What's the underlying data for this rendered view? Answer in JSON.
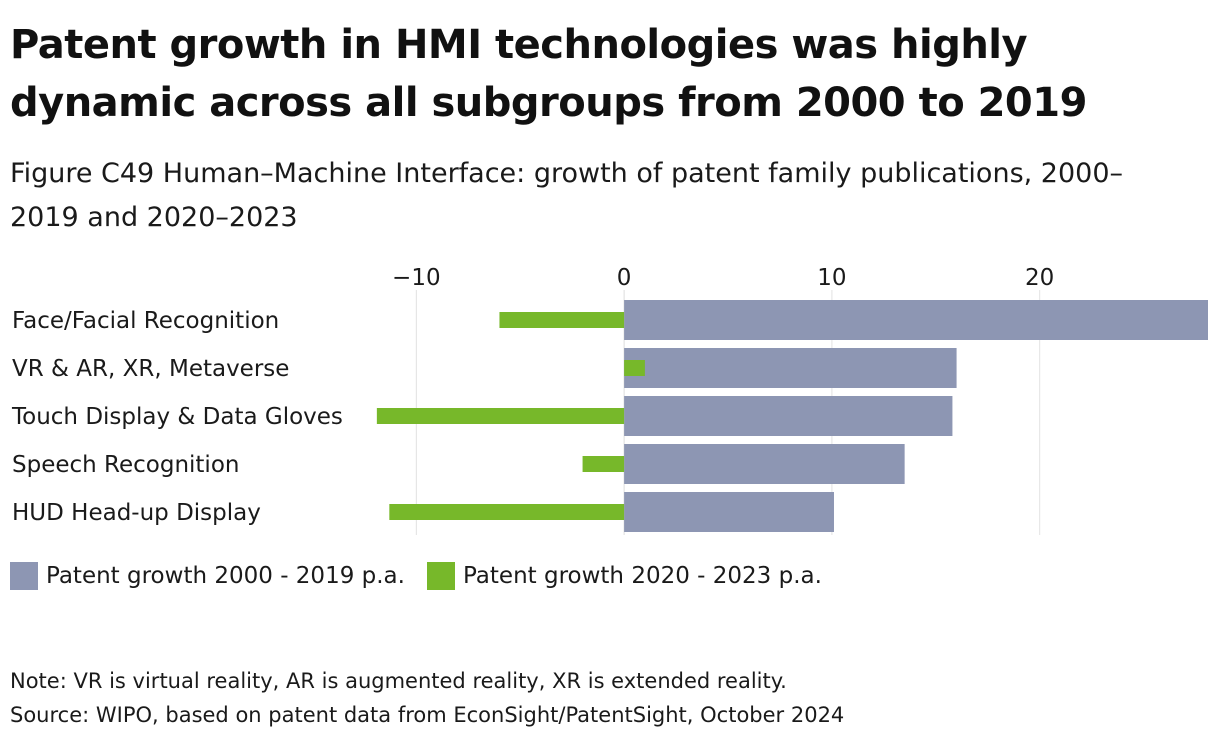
{
  "title": "Patent growth in HMI technologies was highly dynamic across all subgroups from 2000 to 2019",
  "subtitle": "Figure C49 Human–Machine Interface: growth of patent family publications, 2000–2019 and 2020–2023",
  "colors": {
    "series_2000_2019": "#8d96b3",
    "series_2020_2023": "#77b82a",
    "grid": "#e2e2e2"
  },
  "chart_data": {
    "type": "bar",
    "orientation": "horizontal",
    "categories": [
      "Face/Facial Recognition",
      "VR & AR, XR, Metaverse",
      "Touch Display & Data Gloves",
      "Speech Recognition",
      "HUD Head-up Display"
    ],
    "series": [
      {
        "name": "Patent growth 2000 - 2019 p.a.",
        "values": [
          28.1,
          16.0,
          15.8,
          13.5,
          10.1
        ]
      },
      {
        "name": "Patent growth 2020 - 2023 p.a.",
        "values": [
          -6.0,
          1.0,
          -11.9,
          -2.0,
          -11.3
        ]
      }
    ],
    "xlim": [
      -13,
      28.1
    ],
    "xticks": [
      -10,
      0,
      10,
      20
    ],
    "xtick_labels": [
      "−10",
      "0",
      "10",
      "20"
    ],
    "xaxis_position": "top",
    "grid": true,
    "legend": "bottom-left",
    "xlabel": "",
    "ylabel": ""
  },
  "legend": {
    "item1": "Patent growth 2000 - 2019 p.a.",
    "item2": "Patent growth 2020 - 2023 p.a."
  },
  "note": "Note: VR is virtual reality, AR is augmented reality, XR is extended reality.",
  "source": "Source: WIPO, based on patent data from EconSight/PatentSight, October 2024"
}
